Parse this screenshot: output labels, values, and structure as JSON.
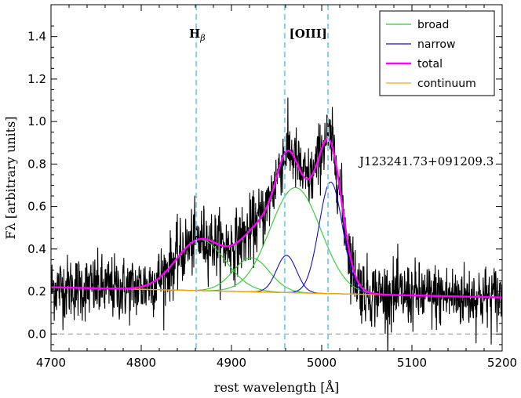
{
  "chart_data": {
    "type": "line",
    "title": "",
    "xlabel": "rest wavelength [Å]",
    "ylabel": "Fλ [arbitrary units]",
    "xlim": [
      4700,
      5200
    ],
    "ylim": [
      -0.08,
      1.55
    ],
    "x_ticks": [
      4700,
      4800,
      4900,
      5000,
      5100,
      5200
    ],
    "x_tick_labels": [
      "4700",
      "4800",
      "4900",
      "5000",
      "5100",
      "5200"
    ],
    "y_ticks": [
      0.0,
      0.2,
      0.4,
      0.6,
      0.8,
      1.0,
      1.2,
      1.4
    ],
    "y_tick_labels": [
      "0.0",
      "0.2",
      "0.4",
      "0.6",
      "0.8",
      "1.0",
      "1.2",
      "1.4"
    ],
    "object_name": "J123241.73+091209.3",
    "line_markers": [
      {
        "wavelength": 4861,
        "label": "H",
        "sub": "β"
      },
      {
        "wavelength": 4959,
        "label": "[OIII]",
        "sub": ""
      },
      {
        "wavelength": 5007,
        "label": "",
        "sub": ""
      }
    ],
    "marker_label_centers": [
      4862,
      4985
    ],
    "zero_line": 0.0,
    "colors": {
      "broad": "#2ecc2e",
      "narrow": "#1010c8",
      "total": "#ff00ff",
      "continuum": "#ffa500",
      "data": "#000000",
      "marker": "#87ceeb",
      "zero": "#999999"
    },
    "continuum": {
      "start": 0.22,
      "end": 0.172
    },
    "broad_components": [
      {
        "center": 4866,
        "amplitude": 0.24,
        "sigma": 27
      },
      {
        "center": 4922,
        "amplitude": 0.16,
        "sigma": 20
      },
      {
        "center": 4971,
        "amplitude": 0.495,
        "sigma": 28
      }
    ],
    "narrow_components": [
      {
        "center": 4961,
        "amplitude": 0.175,
        "sigma": 11
      },
      {
        "center": 5010,
        "amplitude": 0.525,
        "sigma": 13
      }
    ],
    "noise_amplitude": 0.085,
    "noise_points": 1400,
    "series": [
      {
        "name": "broad",
        "description": "three broad Gaussian components on continuum"
      },
      {
        "name": "narrow",
        "description": "two narrow [OIII] Gaussian components on continuum"
      },
      {
        "name": "total",
        "description": "sum of all components plus continuum"
      },
      {
        "name": "continuum",
        "description": "linear continuum"
      }
    ],
    "legend": {
      "position": "top-right",
      "entries": [
        {
          "label": "broad",
          "color_key": "broad"
        },
        {
          "label": "narrow",
          "color_key": "narrow"
        },
        {
          "label": "total",
          "color_key": "total"
        },
        {
          "label": "continuum",
          "color_key": "continuum"
        }
      ]
    }
  }
}
